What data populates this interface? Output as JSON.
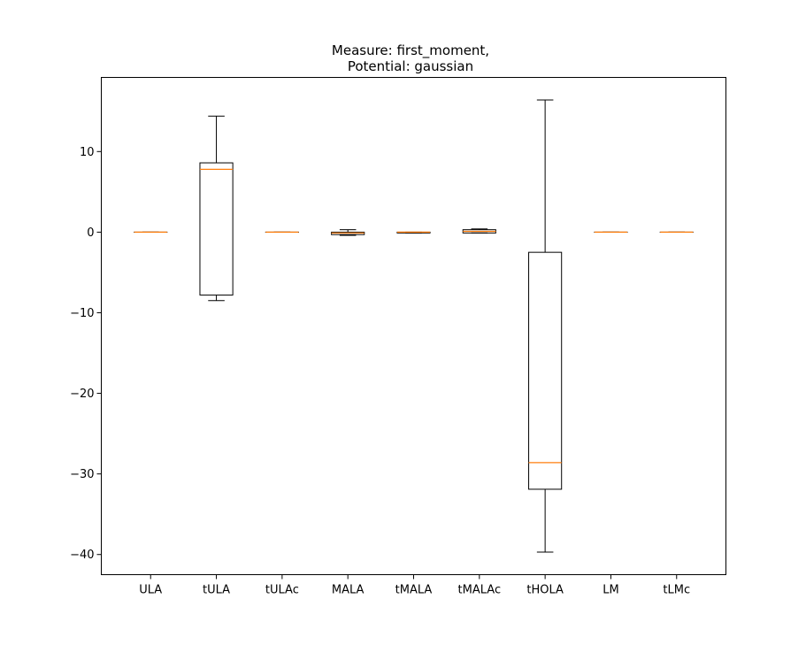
{
  "chart_data": {
    "type": "box",
    "title_lines": [
      "Measure: first_moment,",
      "Potential: gaussian"
    ],
    "xlabel": "",
    "ylabel": "",
    "ylim": [
      -42.5,
      19.2
    ],
    "yticks": [
      10,
      0,
      -10,
      -20,
      -30,
      -40
    ],
    "ytick_labels": [
      "10",
      "0",
      "−10",
      "−20",
      "−30",
      "−40"
    ],
    "grid": false,
    "colors": {
      "box": "#000000",
      "median": "#ff7f0e"
    },
    "categories": [
      "ULA",
      "tULA",
      "tULAc",
      "MALA",
      "tMALA",
      "tMALAc",
      "tHOLA",
      "LM",
      "tLMc"
    ],
    "boxes": [
      {
        "whislo": 0.0,
        "q1": 0.0,
        "med": 0.0,
        "q3": 0.0,
        "whishi": 0.0
      },
      {
        "whislo": -8.5,
        "q1": -7.8,
        "med": 7.8,
        "q3": 8.6,
        "whishi": 14.4
      },
      {
        "whislo": 0.0,
        "q1": 0.0,
        "med": 0.0,
        "q3": 0.0,
        "whishi": 0.0
      },
      {
        "whislo": -0.4,
        "q1": -0.3,
        "med": -0.1,
        "q3": 0.0,
        "whishi": 0.3
      },
      {
        "whislo": -0.1,
        "q1": -0.1,
        "med": 0.0,
        "q3": 0.0,
        "whishi": 0.0
      },
      {
        "whislo": -0.1,
        "q1": -0.1,
        "med": 0.1,
        "q3": 0.3,
        "whishi": 0.4
      },
      {
        "whislo": -39.7,
        "q1": -31.9,
        "med": -28.6,
        "q3": -2.5,
        "whishi": 16.4
      },
      {
        "whislo": 0.0,
        "q1": 0.0,
        "med": 0.0,
        "q3": 0.0,
        "whishi": 0.0
      },
      {
        "whislo": 0.0,
        "q1": 0.0,
        "med": 0.0,
        "q3": 0.0,
        "whishi": 0.0
      }
    ]
  }
}
